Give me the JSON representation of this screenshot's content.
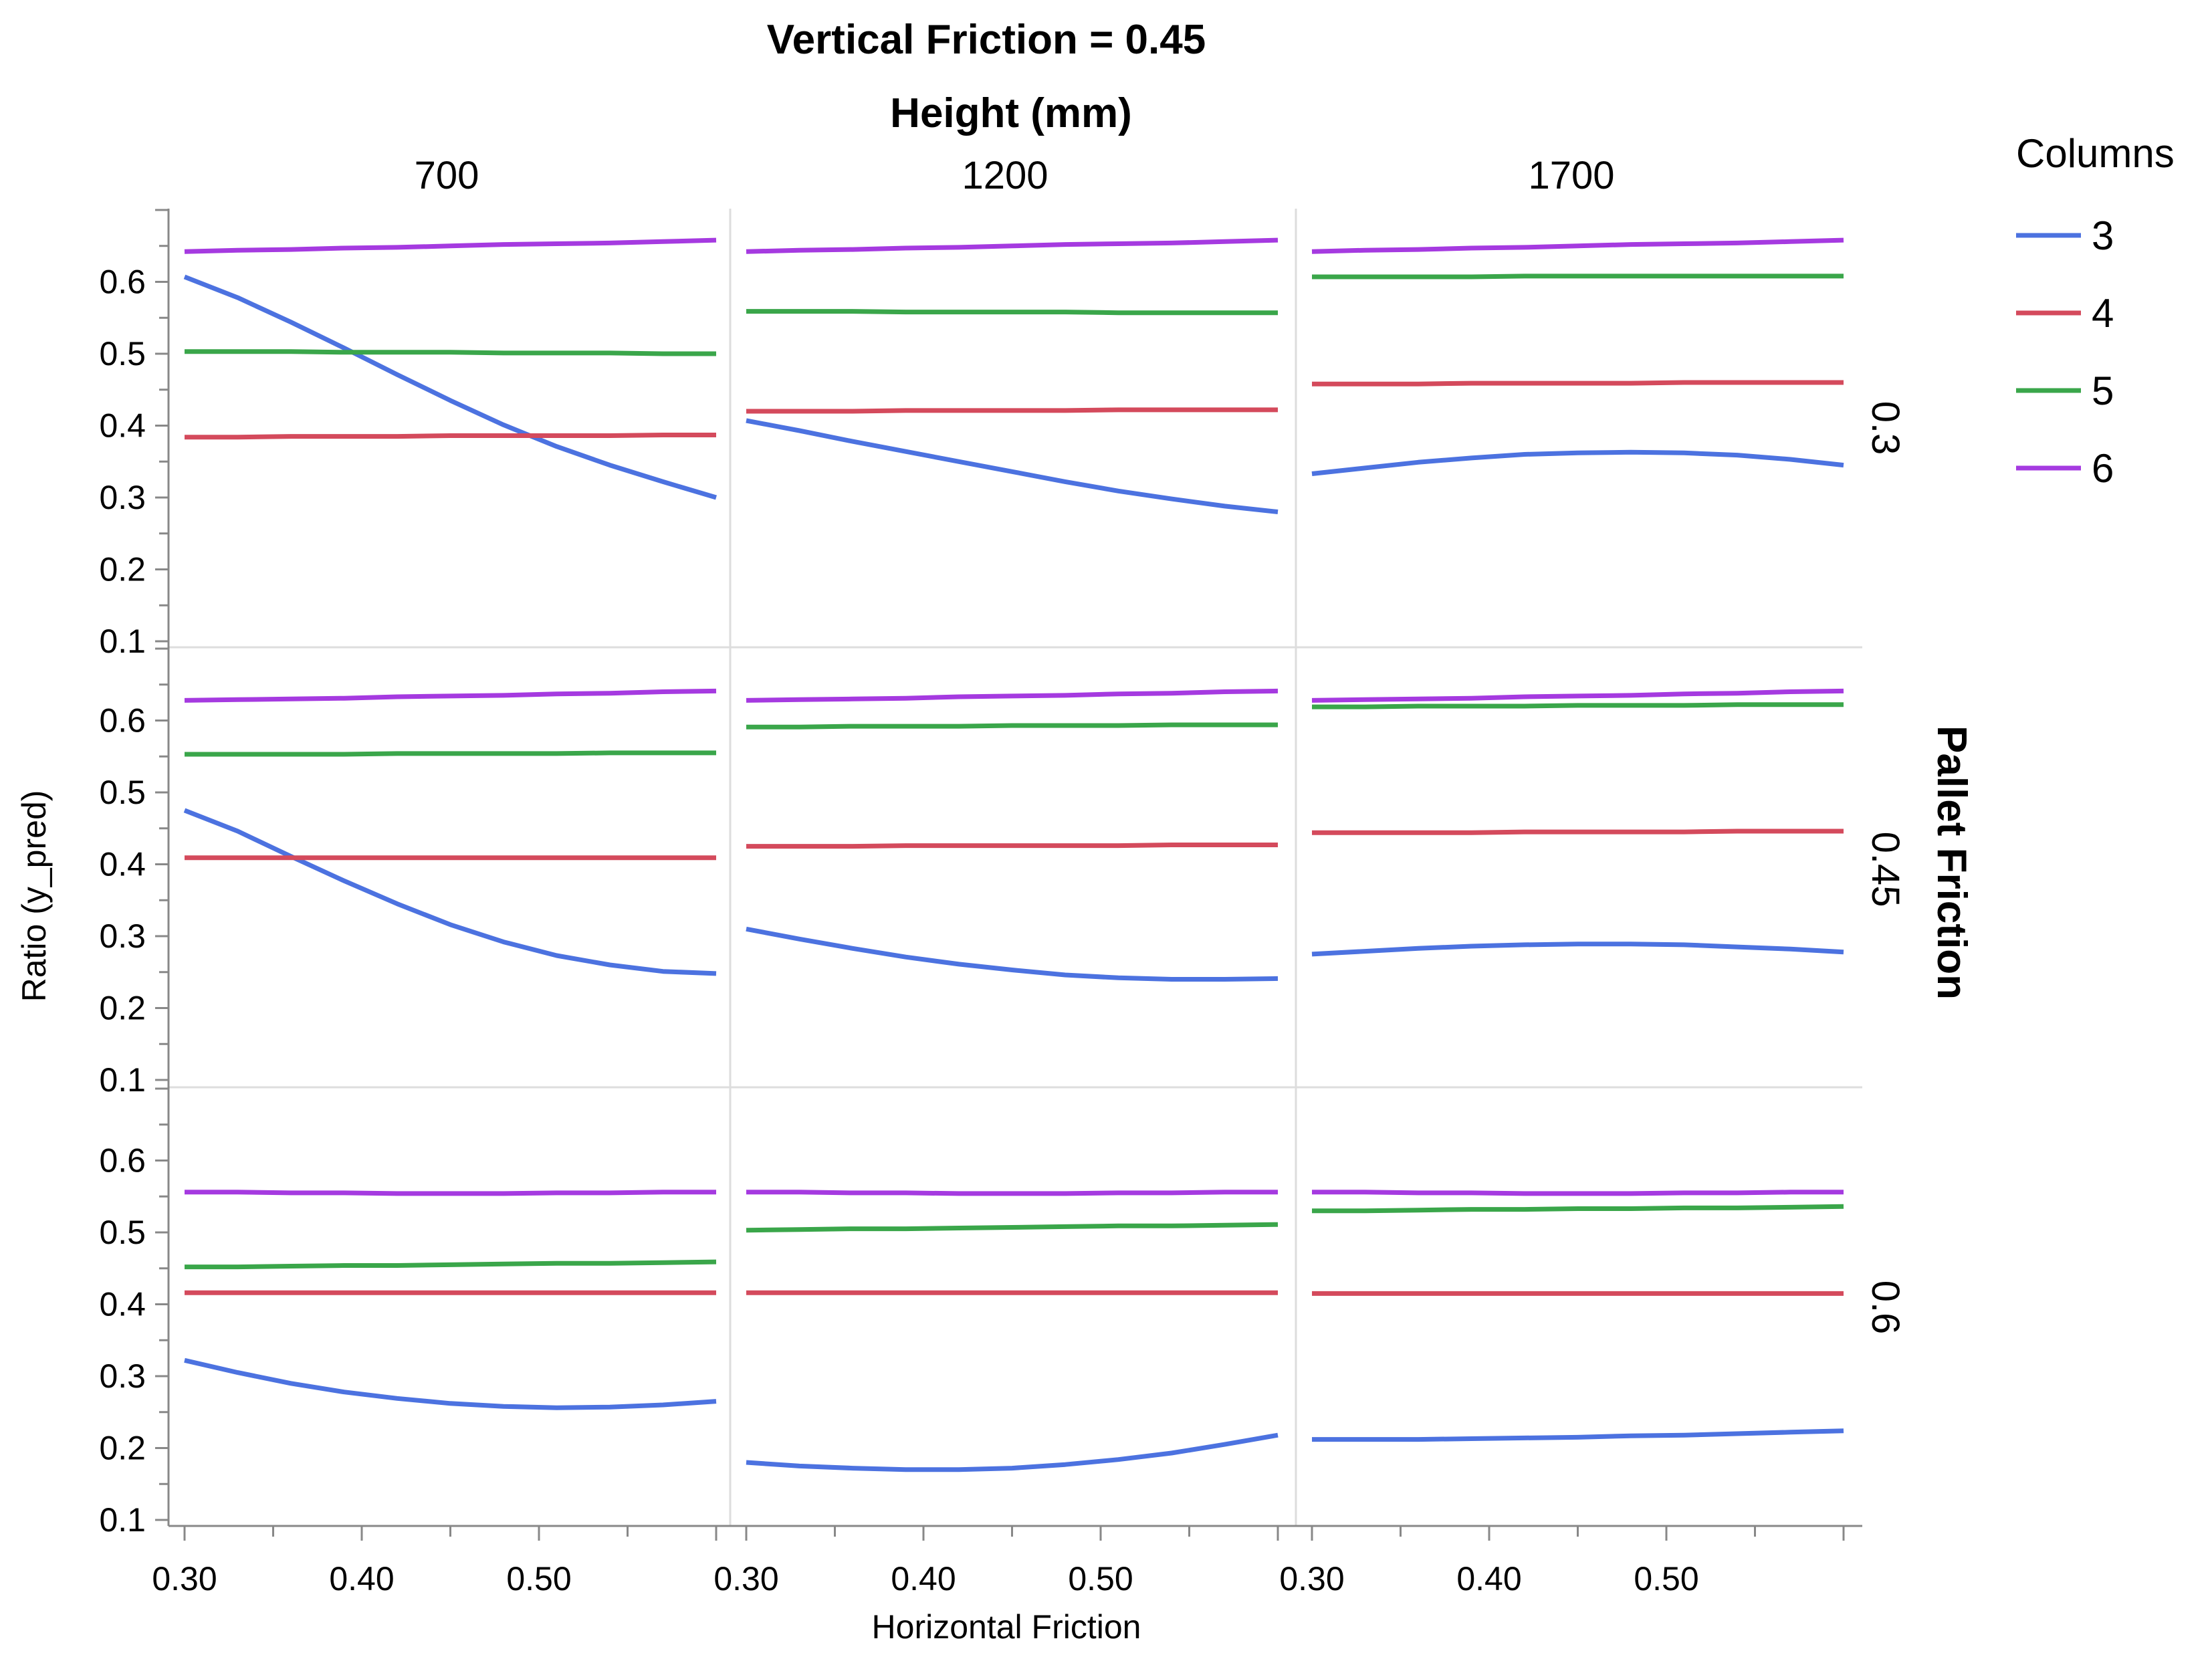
{
  "chart_data": {
    "type": "line",
    "title": "Vertical Friction = 0.45",
    "column_facet": {
      "title": "Height (mm)",
      "values": [
        "700",
        "1200",
        "1700"
      ]
    },
    "row_facet": {
      "title": "Pallet Friction",
      "values": [
        "0.3",
        "0.45",
        "0.6"
      ]
    },
    "xlabel": "Horizontal Friction",
    "ylabel": "Ratio (y_pred)",
    "xlim": [
      0.29,
      0.6
    ],
    "ylim": [
      0.1,
      0.7
    ],
    "x_ticks": [
      "0.30",
      "0.40",
      "0.50"
    ],
    "y_ticks": [
      "0.1",
      "0.2",
      "0.3",
      "0.4",
      "0.5",
      "0.6"
    ],
    "x": [
      0.3,
      0.33,
      0.36,
      0.39,
      0.42,
      0.45,
      0.48,
      0.51,
      0.54,
      0.57,
      0.6
    ],
    "legend": {
      "title": "Columns",
      "items": [
        {
          "label": "3",
          "color": "#4c72e0"
        },
        {
          "label": "4",
          "color": "#d44a5c"
        },
        {
          "label": "5",
          "color": "#3aa64a"
        },
        {
          "label": "6",
          "color": "#a53ae0"
        }
      ]
    },
    "panels": [
      {
        "row": "0.3",
        "col": "700",
        "series": [
          {
            "name": "3",
            "values": [
              0.607,
              0.578,
              0.544,
              0.508,
              0.471,
              0.435,
              0.401,
              0.371,
              0.345,
              0.322,
              0.3
            ]
          },
          {
            "name": "4",
            "values": [
              0.384,
              0.384,
              0.385,
              0.385,
              0.385,
              0.386,
              0.386,
              0.386,
              0.386,
              0.387,
              0.387
            ]
          },
          {
            "name": "5",
            "values": [
              0.503,
              0.503,
              0.503,
              0.502,
              0.502,
              0.502,
              0.501,
              0.501,
              0.501,
              0.5,
              0.5
            ]
          },
          {
            "name": "6",
            "values": [
              0.642,
              0.644,
              0.645,
              0.647,
              0.648,
              0.65,
              0.652,
              0.653,
              0.654,
              0.656,
              0.658
            ]
          }
        ]
      },
      {
        "row": "0.3",
        "col": "1200",
        "series": [
          {
            "name": "3",
            "values": [
              0.407,
              0.393,
              0.378,
              0.364,
              0.35,
              0.336,
              0.322,
              0.309,
              0.298,
              0.288,
              0.28
            ]
          },
          {
            "name": "4",
            "values": [
              0.42,
              0.42,
              0.42,
              0.421,
              0.421,
              0.421,
              0.421,
              0.422,
              0.422,
              0.422,
              0.422
            ]
          },
          {
            "name": "5",
            "values": [
              0.559,
              0.559,
              0.559,
              0.558,
              0.558,
              0.558,
              0.558,
              0.557,
              0.557,
              0.557,
              0.557
            ]
          },
          {
            "name": "6",
            "values": [
              0.642,
              0.644,
              0.645,
              0.647,
              0.648,
              0.65,
              0.652,
              0.653,
              0.654,
              0.656,
              0.658
            ]
          }
        ]
      },
      {
        "row": "0.3",
        "col": "1700",
        "series": [
          {
            "name": "3",
            "values": [
              0.333,
              0.341,
              0.349,
              0.355,
              0.36,
              0.362,
              0.363,
              0.362,
              0.359,
              0.353,
              0.345
            ]
          },
          {
            "name": "4",
            "values": [
              0.458,
              0.458,
              0.458,
              0.459,
              0.459,
              0.459,
              0.459,
              0.46,
              0.46,
              0.46,
              0.46
            ]
          },
          {
            "name": "5",
            "values": [
              0.607,
              0.607,
              0.607,
              0.607,
              0.608,
              0.608,
              0.608,
              0.608,
              0.608,
              0.608,
              0.608
            ]
          },
          {
            "name": "6",
            "values": [
              0.642,
              0.644,
              0.645,
              0.647,
              0.648,
              0.65,
              0.652,
              0.653,
              0.654,
              0.656,
              0.658
            ]
          }
        ]
      },
      {
        "row": "0.45",
        "col": "700",
        "series": [
          {
            "name": "3",
            "values": [
              0.475,
              0.446,
              0.411,
              0.377,
              0.345,
              0.316,
              0.292,
              0.273,
              0.26,
              0.251,
              0.248
            ]
          },
          {
            "name": "4",
            "values": [
              0.409,
              0.409,
              0.409,
              0.409,
              0.409,
              0.409,
              0.409,
              0.409,
              0.409,
              0.409,
              0.409
            ]
          },
          {
            "name": "5",
            "values": [
              0.553,
              0.553,
              0.553,
              0.553,
              0.554,
              0.554,
              0.554,
              0.554,
              0.555,
              0.555,
              0.555
            ]
          },
          {
            "name": "6",
            "values": [
              0.628,
              0.629,
              0.63,
              0.631,
              0.633,
              0.634,
              0.635,
              0.637,
              0.638,
              0.64,
              0.641
            ]
          }
        ]
      },
      {
        "row": "0.45",
        "col": "1200",
        "series": [
          {
            "name": "3",
            "values": [
              0.31,
              0.296,
              0.283,
              0.271,
              0.261,
              0.253,
              0.246,
              0.242,
              0.24,
              0.24,
              0.241
            ]
          },
          {
            "name": "4",
            "values": [
              0.425,
              0.425,
              0.425,
              0.426,
              0.426,
              0.426,
              0.426,
              0.426,
              0.427,
              0.427,
              0.427
            ]
          },
          {
            "name": "5",
            "values": [
              0.591,
              0.591,
              0.592,
              0.592,
              0.592,
              0.593,
              0.593,
              0.593,
              0.594,
              0.594,
              0.594
            ]
          },
          {
            "name": "6",
            "values": [
              0.628,
              0.629,
              0.63,
              0.631,
              0.633,
              0.634,
              0.635,
              0.637,
              0.638,
              0.64,
              0.641
            ]
          }
        ]
      },
      {
        "row": "0.45",
        "col": "1700",
        "series": [
          {
            "name": "3",
            "values": [
              0.275,
              0.279,
              0.283,
              0.286,
              0.288,
              0.289,
              0.289,
              0.288,
              0.285,
              0.282,
              0.278
            ]
          },
          {
            "name": "4",
            "values": [
              0.444,
              0.444,
              0.444,
              0.444,
              0.445,
              0.445,
              0.445,
              0.445,
              0.446,
              0.446,
              0.446
            ]
          },
          {
            "name": "5",
            "values": [
              0.619,
              0.619,
              0.62,
              0.62,
              0.62,
              0.621,
              0.621,
              0.621,
              0.622,
              0.622,
              0.622
            ]
          },
          {
            "name": "6",
            "values": [
              0.628,
              0.629,
              0.63,
              0.631,
              0.633,
              0.634,
              0.635,
              0.637,
              0.638,
              0.64,
              0.641
            ]
          }
        ]
      },
      {
        "row": "0.6",
        "col": "700",
        "series": [
          {
            "name": "3",
            "values": [
              0.322,
              0.305,
              0.29,
              0.278,
              0.269,
              0.262,
              0.258,
              0.256,
              0.257,
              0.26,
              0.265
            ]
          },
          {
            "name": "4",
            "values": [
              0.416,
              0.416,
              0.416,
              0.416,
              0.416,
              0.416,
              0.416,
              0.416,
              0.416,
              0.416,
              0.416
            ]
          },
          {
            "name": "5",
            "values": [
              0.452,
              0.452,
              0.453,
              0.454,
              0.454,
              0.455,
              0.456,
              0.457,
              0.457,
              0.458,
              0.459
            ]
          },
          {
            "name": "6",
            "values": [
              0.556,
              0.556,
              0.555,
              0.555,
              0.554,
              0.554,
              0.554,
              0.555,
              0.555,
              0.556,
              0.556
            ]
          }
        ]
      },
      {
        "row": "0.6",
        "col": "1200",
        "series": [
          {
            "name": "3",
            "values": [
              0.18,
              0.175,
              0.172,
              0.17,
              0.17,
              0.172,
              0.177,
              0.184,
              0.193,
              0.205,
              0.218
            ]
          },
          {
            "name": "4",
            "values": [
              0.416,
              0.416,
              0.416,
              0.416,
              0.416,
              0.416,
              0.416,
              0.416,
              0.416,
              0.416,
              0.416
            ]
          },
          {
            "name": "5",
            "values": [
              0.503,
              0.504,
              0.505,
              0.505,
              0.506,
              0.507,
              0.508,
              0.509,
              0.509,
              0.51,
              0.511
            ]
          },
          {
            "name": "6",
            "values": [
              0.556,
              0.556,
              0.555,
              0.555,
              0.554,
              0.554,
              0.554,
              0.555,
              0.555,
              0.556,
              0.556
            ]
          }
        ]
      },
      {
        "row": "0.6",
        "col": "1700",
        "series": [
          {
            "name": "3",
            "values": [
              0.212,
              0.212,
              0.212,
              0.213,
              0.214,
              0.215,
              0.217,
              0.218,
              0.22,
              0.222,
              0.224
            ]
          },
          {
            "name": "4",
            "values": [
              0.415,
              0.415,
              0.415,
              0.415,
              0.415,
              0.415,
              0.415,
              0.415,
              0.415,
              0.415,
              0.415
            ]
          },
          {
            "name": "5",
            "values": [
              0.53,
              0.53,
              0.531,
              0.532,
              0.532,
              0.533,
              0.533,
              0.534,
              0.534,
              0.535,
              0.536
            ]
          },
          {
            "name": "6",
            "values": [
              0.556,
              0.556,
              0.555,
              0.555,
              0.554,
              0.554,
              0.554,
              0.555,
              0.555,
              0.556,
              0.556
            ]
          }
        ]
      }
    ]
  }
}
